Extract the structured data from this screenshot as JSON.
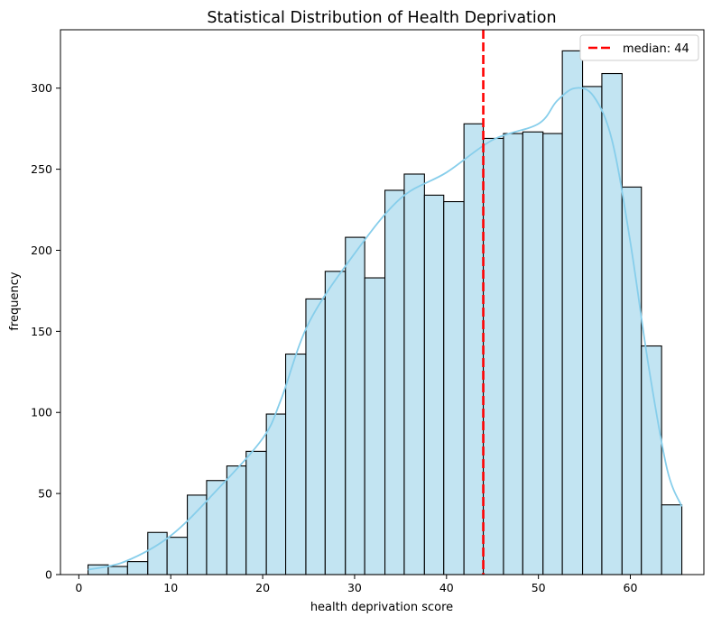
{
  "chart_data": {
    "type": "bar",
    "title": "Statistical Distribution of Health Deprivation",
    "xlabel": "health deprivation score",
    "ylabel": "frequency",
    "xlim": [
      -2,
      68
    ],
    "ylim": [
      0,
      336
    ],
    "xticks": [
      0,
      10,
      20,
      30,
      40,
      50,
      60
    ],
    "yticks": [
      0,
      50,
      100,
      150,
      200,
      250,
      300
    ],
    "grid": false,
    "bar_fill": "#c2e4f2",
    "bar_edge": "#000000",
    "kde_color": "#87ceeb",
    "bins": [
      {
        "x0": 1.0,
        "x1": 3.2,
        "count": 6
      },
      {
        "x0": 3.2,
        "x1": 5.3,
        "count": 5
      },
      {
        "x0": 5.3,
        "x1": 7.5,
        "count": 8
      },
      {
        "x0": 7.5,
        "x1": 9.6,
        "count": 26
      },
      {
        "x0": 9.6,
        "x1": 11.8,
        "count": 23
      },
      {
        "x0": 11.8,
        "x1": 13.9,
        "count": 49
      },
      {
        "x0": 13.9,
        "x1": 16.1,
        "count": 58
      },
      {
        "x0": 16.1,
        "x1": 18.2,
        "count": 67
      },
      {
        "x0": 18.2,
        "x1": 20.4,
        "count": 76
      },
      {
        "x0": 20.4,
        "x1": 22.5,
        "count": 99
      },
      {
        "x0": 22.5,
        "x1": 24.7,
        "count": 136
      },
      {
        "x0": 24.7,
        "x1": 26.8,
        "count": 170
      },
      {
        "x0": 26.8,
        "x1": 29.0,
        "count": 187
      },
      {
        "x0": 29.0,
        "x1": 31.1,
        "count": 208
      },
      {
        "x0": 31.1,
        "x1": 33.3,
        "count": 183
      },
      {
        "x0": 33.3,
        "x1": 35.4,
        "count": 237
      },
      {
        "x0": 35.4,
        "x1": 37.6,
        "count": 247
      },
      {
        "x0": 37.6,
        "x1": 39.7,
        "count": 234
      },
      {
        "x0": 39.7,
        "x1": 41.9,
        "count": 230
      },
      {
        "x0": 41.9,
        "x1": 44.0,
        "count": 278
      },
      {
        "x0": 44.0,
        "x1": 46.2,
        "count": 269
      },
      {
        "x0": 46.2,
        "x1": 48.3,
        "count": 272
      },
      {
        "x0": 48.3,
        "x1": 50.5,
        "count": 273
      },
      {
        "x0": 50.5,
        "x1": 52.6,
        "count": 272
      },
      {
        "x0": 52.6,
        "x1": 54.8,
        "count": 323
      },
      {
        "x0": 54.8,
        "x1": 56.9,
        "count": 301
      },
      {
        "x0": 56.9,
        "x1": 59.1,
        "count": 309
      },
      {
        "x0": 59.1,
        "x1": 61.2,
        "count": 239
      },
      {
        "x0": 61.2,
        "x1": 63.4,
        "count": 141
      },
      {
        "x0": 63.4,
        "x1": 65.6,
        "count": 43
      }
    ],
    "kde": {
      "x": [
        1,
        5,
        10,
        15,
        20,
        22,
        25,
        30,
        35,
        40,
        45,
        50,
        52,
        54,
        56,
        58,
        60,
        62,
        64,
        65.6
      ],
      "y": [
        3,
        8,
        24,
        52,
        84,
        108,
        155,
        198,
        232,
        248,
        268,
        278,
        292,
        300,
        295,
        268,
        205,
        128,
        65,
        42
      ]
    },
    "median": {
      "value": 44,
      "label": "median: 44",
      "color": "#ff0000"
    },
    "legend": {
      "position": "top-right"
    }
  }
}
